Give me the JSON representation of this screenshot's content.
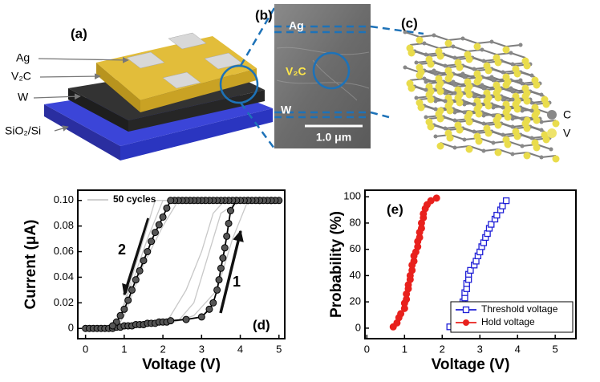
{
  "panels": {
    "a": {
      "label": "(a)",
      "layers": [
        "Ag",
        "V₂C",
        "W",
        "SiO₂/Si"
      ]
    },
    "b": {
      "label": "(b)",
      "layers": [
        "Ag",
        "V₂C",
        "W"
      ],
      "scale_bar": "1.0 μm"
    },
    "c": {
      "label": "(c)",
      "legend": [
        "C",
        "V"
      ]
    }
  },
  "chart_data": [
    {
      "type": "line",
      "xlabel": "Voltage (V)",
      "ylabel": "Current (μA)",
      "annotations": [
        "(d)",
        "1",
        "2"
      ],
      "xlim": [
        -0.2,
        5.15
      ],
      "ylim": [
        -0.008,
        0.108
      ],
      "xticks": [
        0,
        1,
        2,
        3,
        4,
        5
      ],
      "yticks": [
        {
          "value": 0,
          "label": "0"
        },
        {
          "value": 0.02,
          "label": "0.02"
        },
        {
          "value": 0.04,
          "label": "0.04"
        },
        {
          "value": 0.06,
          "label": "0.06"
        },
        {
          "value": 0.08,
          "label": "0.08"
        },
        {
          "value": 0.1,
          "label": "0.10"
        }
      ],
      "legend": "upper left",
      "series": [
        {
          "name": "50 cycles",
          "color": "#c8c8c8",
          "x": [
            0,
            2.0,
            2.4,
            2.8,
            3.2,
            3.5,
            4.0,
            5.0,
            2.4,
            2.0,
            1.5,
            1.0,
            0.8
          ],
          "values": [
            0,
            0.004,
            0.006,
            0.02,
            0.06,
            0.09,
            0.1,
            0.1,
            0.1,
            0.08,
            0.05,
            0.01,
            0
          ]
        },
        {
          "color": "#c8c8c8",
          "x": [
            0,
            2.3,
            2.8,
            3.4,
            3.8,
            4.2,
            5.0,
            2.0,
            1.6,
            1.2,
            0.9,
            0.7
          ],
          "values": [
            0,
            0.005,
            0.01,
            0.03,
            0.07,
            0.1,
            0.1,
            0.1,
            0.07,
            0.035,
            0.01,
            0
          ]
        },
        {
          "color": "#c8c8c8",
          "x": [
            0,
            2.1,
            2.6,
            3.0,
            3.3,
            3.6,
            5.0,
            1.8,
            1.4,
            1.0,
            0.8
          ],
          "values": [
            0,
            0.005,
            0.03,
            0.06,
            0.09,
            0.1,
            0.1,
            0.1,
            0.06,
            0.02,
            0
          ]
        },
        {
          "color": "#000000",
          "marker": "circle",
          "x": [
            0,
            0.1,
            0.2,
            0.3,
            0.4,
            0.5,
            0.6,
            0.7,
            0.8,
            0.9,
            1.0,
            1.1,
            1.2,
            1.3,
            1.4,
            1.5,
            1.6,
            1.7,
            1.8,
            1.9,
            2.0,
            2.1,
            2.2,
            2.6,
            3.0,
            3.2,
            3.3,
            3.4,
            3.45,
            3.5,
            3.55,
            3.6,
            3.65,
            3.7,
            3.75,
            3.9,
            4.2,
            4.5,
            4.8,
            5.0,
            4.9,
            4.8,
            4.7,
            4.6,
            4.5,
            4.4,
            4.3,
            4.2,
            4.1,
            4.0,
            3.9,
            3.8,
            3.7,
            3.6,
            3.5,
            3.4,
            3.3,
            3.2,
            3.1,
            3.0,
            2.9,
            2.8,
            2.7,
            2.6,
            2.5,
            2.4,
            2.3,
            2.2,
            2.1,
            2.0,
            1.9,
            1.8,
            1.7,
            1.6,
            1.5,
            1.4,
            1.3,
            1.2,
            1.1,
            1.0,
            0.9,
            0.8,
            0.7
          ],
          "values": [
            0,
            0,
            0,
            0,
            0,
            0,
            0,
            0,
            0.001,
            0.001,
            0.002,
            0.002,
            0.002,
            0.003,
            0.003,
            0.003,
            0.004,
            0.004,
            0.004,
            0.005,
            0.005,
            0.005,
            0.006,
            0.007,
            0.009,
            0.015,
            0.02,
            0.03,
            0.038,
            0.047,
            0.055,
            0.063,
            0.072,
            0.082,
            0.092,
            0.1,
            0.1,
            0.1,
            0.1,
            0.1,
            0.1,
            0.1,
            0.1,
            0.1,
            0.1,
            0.1,
            0.1,
            0.1,
            0.1,
            0.1,
            0.1,
            0.1,
            0.1,
            0.1,
            0.1,
            0.1,
            0.1,
            0.1,
            0.1,
            0.1,
            0.1,
            0.1,
            0.1,
            0.1,
            0.1,
            0.1,
            0.1,
            0.1,
            0.094,
            0.087,
            0.081,
            0.075,
            0.068,
            0.06,
            0.053,
            0.045,
            0.038,
            0.03,
            0.022,
            0.015,
            0.01,
            0.005,
            0.002
          ]
        }
      ]
    },
    {
      "type": "line",
      "xlabel": "Voltage (V)",
      "ylabel": "Probability (%)",
      "annotations": [
        "(e)"
      ],
      "xlim": [
        -0.05,
        5.55
      ],
      "ylim": [
        -8,
        105
      ],
      "xticks": [
        0,
        1,
        2,
        3,
        4,
        5
      ],
      "yticks": [
        0,
        20,
        40,
        60,
        80,
        100
      ],
      "legend": "lower right",
      "series": [
        {
          "name": "Threshold voltage",
          "color": "#1f1fd6",
          "marker": "square",
          "x": [
            2.2,
            2.35,
            2.4,
            2.45,
            2.5,
            2.55,
            2.55,
            2.6,
            2.6,
            2.65,
            2.65,
            2.7,
            2.7,
            2.75,
            2.85,
            2.9,
            2.95,
            3.0,
            3.05,
            3.1,
            3.15,
            3.2,
            3.25,
            3.3,
            3.4,
            3.45,
            3.55,
            3.6,
            3.7
          ],
          "values": [
            1,
            3,
            6,
            9,
            13,
            16,
            20,
            23,
            27,
            30,
            34,
            37,
            41,
            44,
            48,
            51,
            55,
            58,
            62,
            65,
            69,
            72,
            76,
            79,
            83,
            86,
            90,
            93,
            97
          ]
        },
        {
          "name": "Hold voltage",
          "color": "#e8211d",
          "marker": "circle",
          "x": [
            0.7,
            0.8,
            0.85,
            0.9,
            1.0,
            1.0,
            1.05,
            1.05,
            1.1,
            1.1,
            1.15,
            1.15,
            1.2,
            1.2,
            1.25,
            1.25,
            1.3,
            1.35,
            1.35,
            1.4,
            1.4,
            1.45,
            1.45,
            1.5,
            1.5,
            1.55,
            1.6,
            1.7,
            1.85
          ],
          "values": [
            1,
            4,
            8,
            11,
            15,
            19,
            22,
            26,
            30,
            33,
            37,
            40,
            44,
            48,
            51,
            55,
            58,
            62,
            66,
            69,
            73,
            76,
            80,
            84,
            87,
            91,
            94,
            97,
            99
          ]
        }
      ]
    }
  ]
}
